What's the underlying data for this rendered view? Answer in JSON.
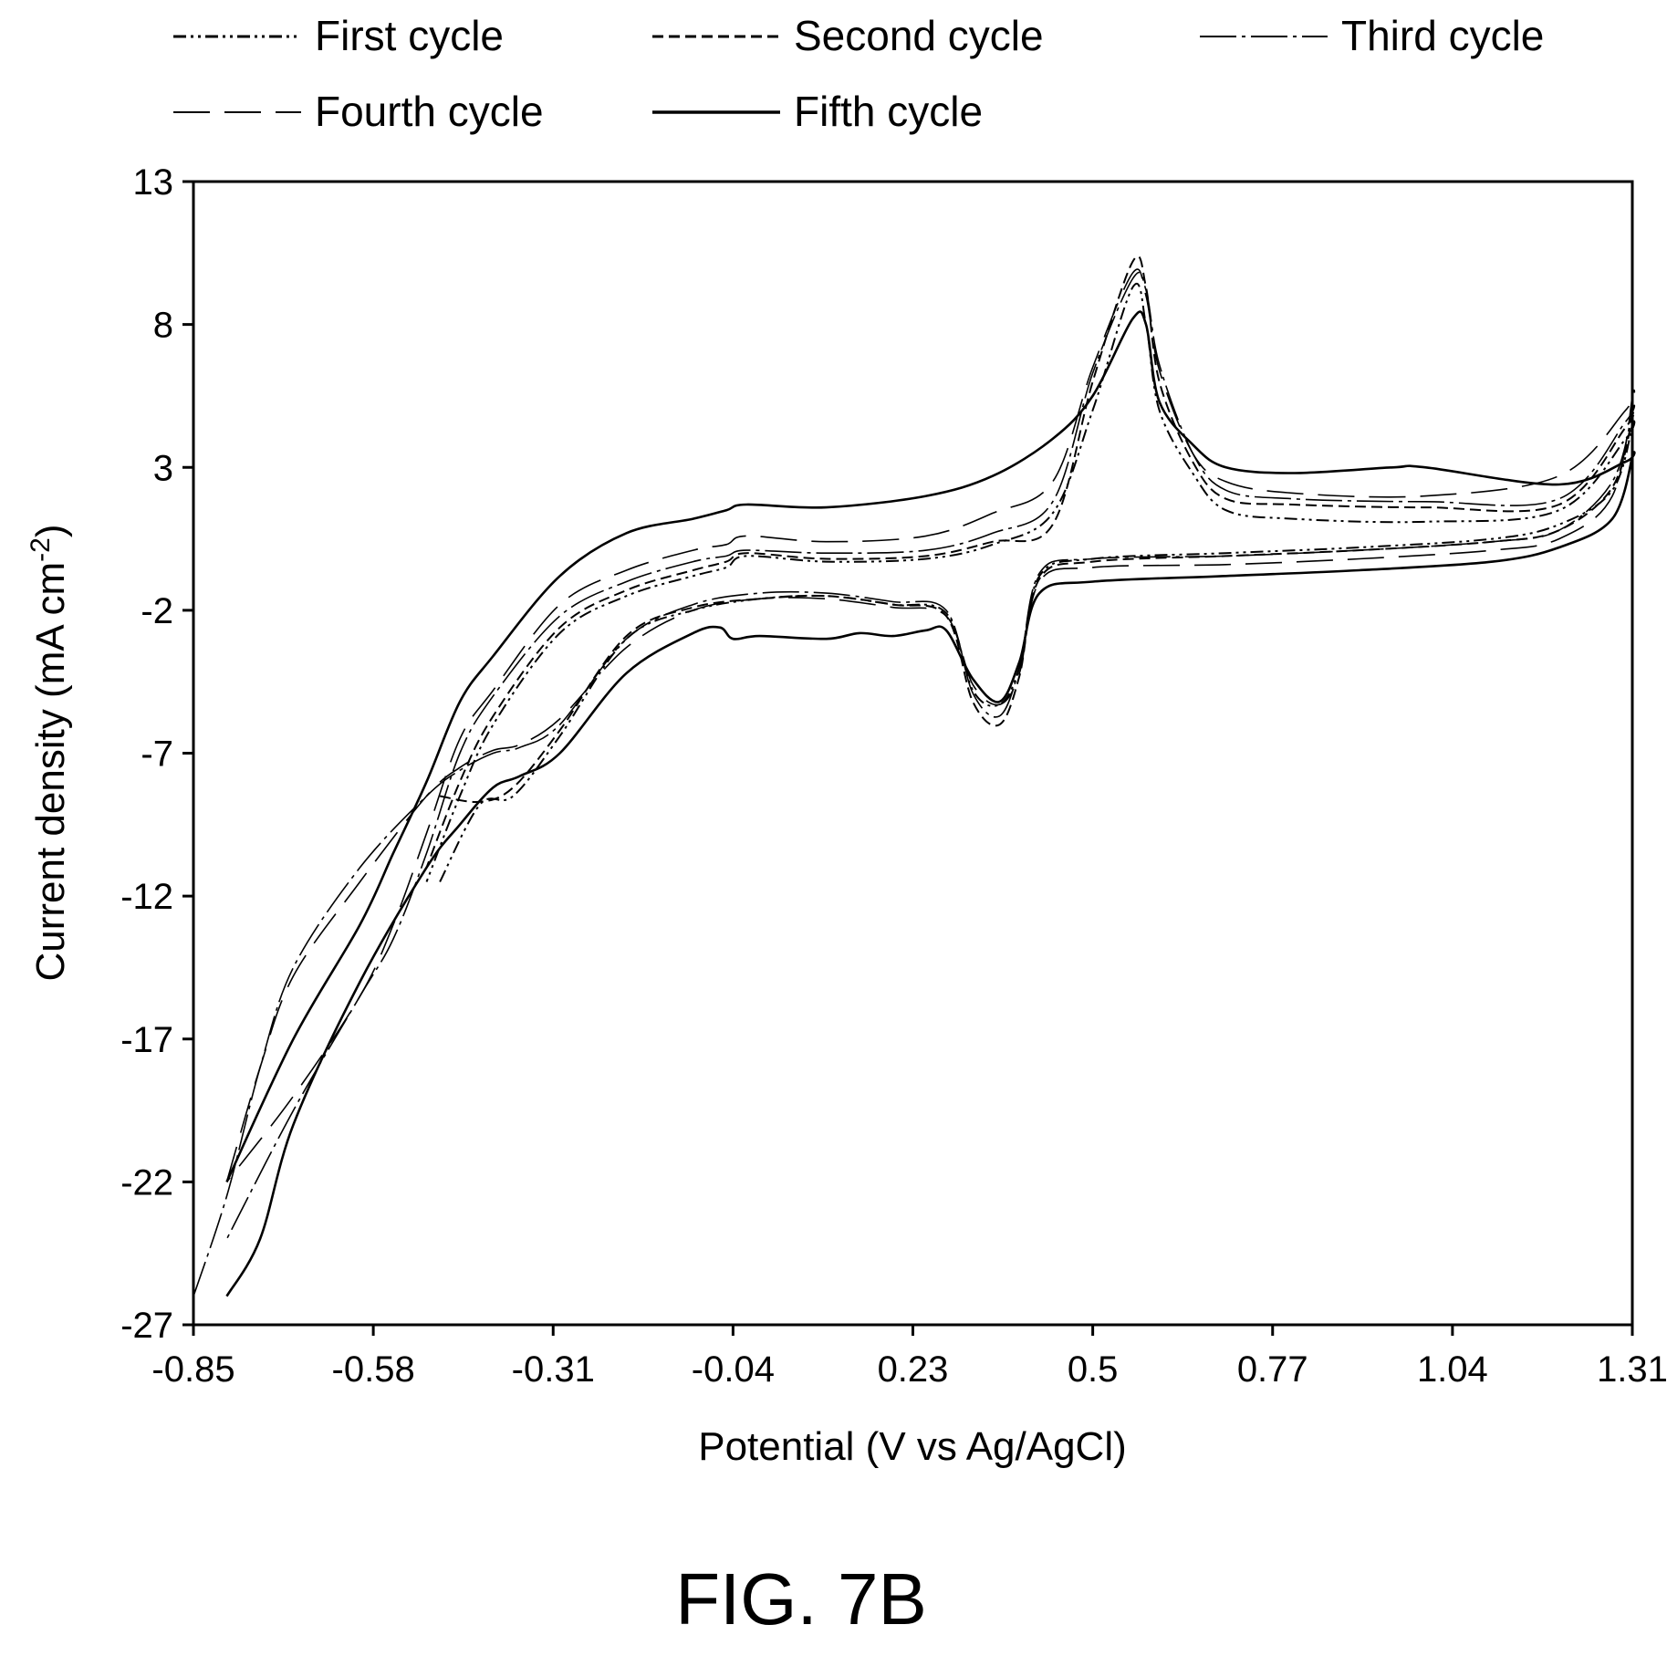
{
  "chart_data": {
    "type": "line",
    "xlabel": "Potential (V vs Ag/AgCl)",
    "ylabel": "Current density (mA cm",
    "ylabel_superscript": "-2",
    "ylabel_close": ")",
    "caption": "FIG. 7B",
    "xlim": [
      -0.85,
      1.31
    ],
    "ylim": [
      -27,
      13
    ],
    "xticks": [
      "-0.85",
      "-0.58",
      "-0.31",
      "-0.04",
      "0.23",
      "0.5",
      "0.77",
      "1.04",
      "1.31"
    ],
    "xtick_values": [
      -0.85,
      -0.58,
      -0.31,
      -0.04,
      0.23,
      0.5,
      0.77,
      1.04,
      1.31
    ],
    "yticks": [
      "13",
      "8",
      "3",
      "-2",
      "-7",
      "-12",
      "-17",
      "-22",
      "-27"
    ],
    "ytick_values": [
      13,
      8,
      3,
      -2,
      -7,
      -12,
      -17,
      -22,
      -27
    ],
    "grid": false,
    "legend_position": "top",
    "series": [
      {
        "name": "First cycle",
        "style": "dash-dot-dot",
        "stroke_width": 2,
        "x": [
          -0.48,
          -0.42,
          -0.37,
          -0.3,
          -0.2,
          -0.1,
          0.0,
          0.1,
          0.2,
          0.28,
          0.32,
          0.36,
          0.39,
          0.42,
          0.5,
          0.7,
          0.9,
          1.1,
          1.2,
          1.28,
          1.31,
          1.3,
          1.2,
          1.0,
          0.8,
          0.7,
          0.65,
          0.6,
          0.58,
          0.56,
          0.5,
          0.44,
          0.35,
          0.25,
          0.1,
          -0.02,
          -0.05,
          -0.1,
          -0.2,
          -0.3,
          -0.4,
          -0.45,
          -0.5
        ],
        "y": [
          -11.5,
          -8.8,
          -8.5,
          -6.4,
          -3.0,
          -2.0,
          -1.6,
          -1.5,
          -1.8,
          -2.1,
          -4.8,
          -5.3,
          -4.0,
          -0.8,
          -0.2,
          0.0,
          0.2,
          0.5,
          1.0,
          2.2,
          4.5,
          4.0,
          1.5,
          1.1,
          1.2,
          1.5,
          2.8,
          5.0,
          8.0,
          9.3,
          5.0,
          1.4,
          0.3,
          -0.2,
          -0.3,
          -0.1,
          -0.5,
          -0.8,
          -1.5,
          -2.8,
          -6.0,
          -8.5,
          -11.5
        ]
      },
      {
        "name": "Second cycle",
        "style": "dashed",
        "stroke_width": 2,
        "x": [
          -0.48,
          -0.42,
          -0.37,
          -0.3,
          -0.2,
          -0.1,
          0.0,
          0.1,
          0.2,
          0.28,
          0.32,
          0.36,
          0.39,
          0.42,
          0.5,
          0.7,
          0.9,
          1.1,
          1.2,
          1.28,
          1.31,
          1.3,
          1.2,
          1.0,
          0.8,
          0.7,
          0.65,
          0.6,
          0.58,
          0.56,
          0.5,
          0.44,
          0.35,
          0.25,
          0.1,
          -0.02,
          -0.05,
          -0.1,
          -0.2,
          -0.3,
          -0.4,
          -0.45,
          -0.5
        ],
        "y": [
          -8.5,
          -8.7,
          -8.2,
          -6.2,
          -2.9,
          -1.9,
          -1.6,
          -1.5,
          -1.8,
          -2.2,
          -5.2,
          -6.0,
          -4.3,
          -0.9,
          -0.3,
          -0.1,
          0.1,
          0.4,
          0.8,
          2.3,
          4.8,
          4.4,
          1.7,
          1.6,
          1.7,
          1.9,
          3.2,
          6.0,
          9.3,
          10.2,
          6.0,
          1.0,
          0.4,
          -0.1,
          -0.2,
          0.0,
          -0.3,
          -0.6,
          -1.3,
          -2.6,
          -5.7,
          -8.0,
          -11.0
        ]
      },
      {
        "name": "Third cycle",
        "style": "dash-dot",
        "stroke_width": 1.6,
        "x": [
          -0.85,
          -0.8,
          -0.75,
          -0.7,
          -0.6,
          -0.5,
          -0.45,
          -0.4,
          -0.36,
          -0.3,
          -0.2,
          -0.1,
          0.0,
          0.1,
          0.2,
          0.28,
          0.32,
          0.36,
          0.39,
          0.42,
          0.5,
          0.7,
          0.9,
          1.1,
          1.2,
          1.28,
          1.31,
          1.3,
          1.2,
          1.0,
          0.8,
          0.7,
          0.65,
          0.6,
          0.58,
          0.56,
          0.5,
          0.44,
          0.35,
          0.25,
          0.1,
          -0.02,
          -0.05,
          -0.1,
          -0.2,
          -0.3,
          -0.4,
          -0.45,
          -0.5,
          -0.55,
          -0.6,
          -0.7,
          -0.8
        ],
        "y": [
          -26,
          -22.5,
          -18.0,
          -14.5,
          -11.0,
          -8.5,
          -7.6,
          -7.0,
          -6.8,
          -6.0,
          -3.0,
          -1.8,
          -1.4,
          -1.4,
          -1.7,
          -2.0,
          -4.9,
          -5.7,
          -4.0,
          -0.7,
          -0.2,
          -0.1,
          0.1,
          0.4,
          0.8,
          2.5,
          5.0,
          4.6,
          1.9,
          1.8,
          1.9,
          2.2,
          3.5,
          6.6,
          9.2,
          9.6,
          6.3,
          1.8,
          0.7,
          0.1,
          0.0,
          0.1,
          -0.1,
          -0.3,
          -1.0,
          -2.2,
          -5.0,
          -7.0,
          -10.5,
          -13.5,
          -15.5,
          -19.5,
          -24.0
        ]
      },
      {
        "name": "Fourth cycle",
        "style": "long-dash",
        "stroke_width": 1.6,
        "x": [
          -0.8,
          -0.75,
          -0.7,
          -0.6,
          -0.5,
          -0.45,
          -0.4,
          -0.36,
          -0.3,
          -0.2,
          -0.1,
          0.0,
          0.1,
          0.2,
          0.28,
          0.32,
          0.36,
          0.39,
          0.42,
          0.5,
          0.7,
          0.9,
          1.1,
          1.2,
          1.28,
          1.31,
          1.3,
          1.2,
          1.0,
          0.8,
          0.7,
          0.65,
          0.6,
          0.58,
          0.56,
          0.5,
          0.44,
          0.35,
          0.25,
          0.1,
          -0.02,
          -0.05,
          -0.1,
          -0.2,
          -0.3,
          -0.4,
          -0.45,
          -0.5,
          -0.55,
          -0.6,
          -0.7,
          -0.8
        ],
        "y": [
          -22.0,
          -18.0,
          -14.8,
          -11.5,
          -8.5,
          -7.5,
          -6.9,
          -6.7,
          -5.8,
          -3.3,
          -2.0,
          -1.6,
          -1.6,
          -1.9,
          -2.2,
          -4.6,
          -5.3,
          -4.2,
          -1.0,
          -0.5,
          -0.4,
          -0.2,
          0.1,
          0.5,
          2.0,
          5.5,
          5.0,
          2.7,
          2.0,
          2.1,
          2.5,
          3.5,
          6.4,
          9.0,
          9.8,
          6.5,
          2.5,
          1.4,
          0.6,
          0.4,
          0.6,
          0.3,
          0.1,
          -0.6,
          -1.8,
          -4.8,
          -6.5,
          -9.8,
          -13.0,
          -15.5,
          -19.0,
          -22.0
        ]
      },
      {
        "name": "Fifth cycle",
        "style": "solid",
        "stroke_width": 2.6,
        "x": [
          -0.8,
          -0.75,
          -0.7,
          -0.6,
          -0.5,
          -0.45,
          -0.4,
          -0.36,
          -0.3,
          -0.2,
          -0.1,
          -0.06,
          -0.04,
          0.0,
          0.1,
          0.15,
          0.2,
          0.25,
          0.28,
          0.32,
          0.36,
          0.39,
          0.42,
          0.5,
          0.7,
          0.9,
          1.1,
          1.2,
          1.28,
          1.31,
          1.3,
          1.2,
          1.0,
          0.95,
          0.8,
          0.7,
          0.65,
          0.6,
          0.58,
          0.56,
          0.5,
          0.44,
          0.35,
          0.25,
          0.1,
          -0.02,
          -0.05,
          -0.1,
          -0.2,
          -0.3,
          -0.4,
          -0.45,
          -0.5,
          -0.55,
          -0.6,
          -0.7,
          -0.8
        ],
        "y": [
          -26.0,
          -24.0,
          -20.0,
          -15.0,
          -11.0,
          -9.5,
          -8.2,
          -7.8,
          -7.0,
          -4.2,
          -2.8,
          -2.6,
          -3.0,
          -2.9,
          -3.0,
          -2.8,
          -2.9,
          -2.7,
          -2.7,
          -4.4,
          -5.2,
          -3.8,
          -1.4,
          -1.0,
          -0.8,
          -0.6,
          -0.3,
          0.2,
          1.2,
          3.4,
          3.2,
          2.4,
          3.0,
          3.0,
          2.8,
          3.0,
          3.8,
          5.3,
          8.0,
          8.2,
          5.5,
          4.0,
          2.7,
          2.0,
          1.6,
          1.7,
          1.5,
          1.2,
          0.7,
          -0.8,
          -3.6,
          -5.2,
          -8.0,
          -10.5,
          -13.0,
          -17.0,
          -22.0
        ]
      }
    ]
  }
}
